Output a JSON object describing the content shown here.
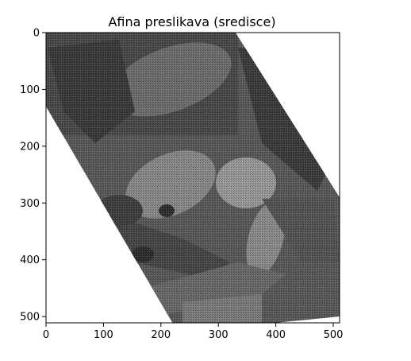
{
  "chart_data": {
    "type": "heatmap",
    "title": "Afina preslikava (sredisce)",
    "xlabel": "",
    "ylabel": "",
    "xlim": [
      0,
      511
    ],
    "ylim": [
      511,
      0
    ],
    "y_inverted": true,
    "colormap": "gray",
    "grid": false,
    "x_ticks": [
      0,
      100,
      200,
      300,
      400,
      500
    ],
    "y_ticks": [
      0,
      100,
      200,
      300,
      400,
      500
    ],
    "x_tick_labels": [
      "0",
      "100",
      "200",
      "300",
      "400",
      "500"
    ],
    "y_tick_labels": [
      "0",
      "100",
      "200",
      "300",
      "400",
      "500"
    ],
    "image_region": {
      "description_polygon_units": "data",
      "corners": [
        [
          0,
          0
        ],
        [
          330,
          0
        ],
        [
          511,
          290
        ],
        [
          511,
          500
        ],
        [
          400,
          511
        ],
        [
          220,
          511
        ],
        [
          0,
          130
        ]
      ]
    },
    "background_value": "white",
    "image_content": "grayscale photograph, affine transformed (sheared/rotated about center)"
  }
}
